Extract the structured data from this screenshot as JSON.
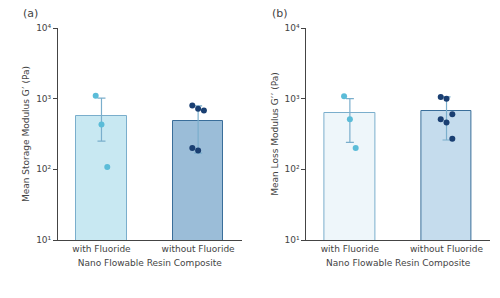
{
  "chart_data": [
    {
      "type": "bar",
      "title": "(a)",
      "xlabel": "Nano Flowable Resin Composite",
      "ylabel": "Mean Storage Modulus G’ (Pa)",
      "categories": [
        "with Fluoride",
        "without Fluoride"
      ],
      "values": [
        570,
        490
      ],
      "colors": [
        "#c8e8f2",
        "#9bbdd8"
      ],
      "edge_colors": [
        "#7aaecc",
        "#3a6e9a"
      ],
      "error_lower": [
        320,
        320
      ],
      "error_upper": [
        450,
        300
      ],
      "error_color": "#7aaecc",
      "points": [
        [
          1100,
          430,
          108
        ],
        [
          800,
          720,
          680,
          200,
          185
        ]
      ],
      "point_colors": [
        "#5bbcd8",
        "#1a3f72"
      ],
      "log": "y",
      "ylim": [
        10,
        10000
      ],
      "yticks": [
        {
          "value": 10,
          "label": "10¹"
        },
        {
          "value": 100,
          "label": "10²"
        },
        {
          "value": 1000,
          "label": "10³"
        },
        {
          "value": 10000,
          "label": "10⁴"
        }
      ],
      "grid": false
    },
    {
      "type": "bar",
      "title": "(b)",
      "xlabel": "Nano Flowable Resin Composite",
      "ylabel": "Mean Loss Modulus G’’ (Pa)",
      "categories": [
        "with Fluoride",
        "without Fluoride"
      ],
      "values": [
        620,
        660
      ],
      "colors": [
        "#eef6fa",
        "#c5dced"
      ],
      "edge_colors": [
        "#7aaecc",
        "#3a6e9a"
      ],
      "error_lower": [
        380,
        400
      ],
      "error_upper": [
        380,
        400
      ],
      "error_color": "#7aaecc",
      "points": [
        [
          1080,
          510,
          200
        ],
        [
          1060,
          1000,
          600,
          510,
          460,
          270
        ]
      ],
      "point_colors": [
        "#5bbcd8",
        "#1a3f72"
      ],
      "log": "y",
      "ylim": [
        10,
        10000
      ],
      "yticks": [
        {
          "value": 10,
          "label": "10¹"
        },
        {
          "value": 100,
          "label": "10²"
        },
        {
          "value": 1000,
          "label": "10³"
        },
        {
          "value": 10000,
          "label": "10⁴"
        }
      ],
      "grid": false
    }
  ]
}
